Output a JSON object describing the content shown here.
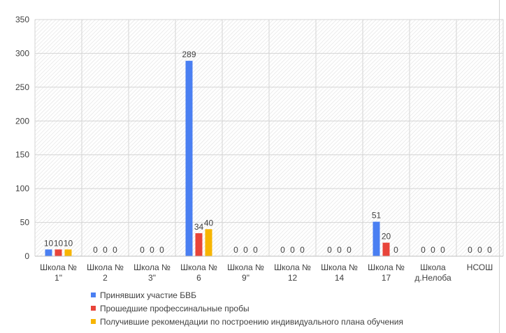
{
  "chart_data": {
    "type": "bar",
    "categories": [
      [
        "Школа №",
        "1\""
      ],
      [
        "Школа №",
        "2"
      ],
      [
        "Школа №",
        "3\""
      ],
      [
        "Школа",
        "6"
      ],
      [
        "Школа №",
        "9\""
      ],
      [
        "Школа",
        "12"
      ],
      [
        "Школа №",
        "14"
      ],
      [
        "Школа №",
        "17"
      ],
      [
        "Школа",
        "д.Нелоба"
      ],
      [
        "НСОШ",
        ""
      ]
    ],
    "category_suffix": [
      "",
      "",
      "",
      "№",
      "",
      "№",
      "",
      "",
      "",
      ""
    ],
    "series": [
      {
        "name": "Принявших  участие БВБ",
        "color": "#4a7ff2",
        "values": [
          10,
          0,
          0,
          289,
          0,
          0,
          0,
          51,
          0,
          0
        ],
        "labels": [
          "10",
          "0",
          "0",
          "289",
          "0",
          "0",
          "0",
          "51",
          "0",
          "0"
        ]
      },
      {
        "name": "Прошедшие профессинальные пробы",
        "color": "#e8443a",
        "values": [
          10,
          0,
          0,
          34,
          0,
          0,
          0,
          20,
          0,
          0
        ],
        "labels": [
          "10",
          "0",
          "0",
          "34",
          "0",
          "0",
          "0",
          "20",
          "0",
          "0"
        ]
      },
      {
        "name": "Получившие  рекомендации по построению индивидуального плана  обучения",
        "color": "#f7b500",
        "values": [
          10,
          0,
          0,
          40,
          0,
          0,
          0,
          0,
          0,
          0
        ],
        "labels": [
          "10",
          "0",
          "0",
          "40",
          "0",
          "0",
          "0",
          "0",
          "0",
          "0"
        ]
      }
    ],
    "yticks": [
      0,
      50,
      100,
      150,
      200,
      250,
      300,
      350
    ],
    "ylim": [
      0,
      350
    ],
    "grid": true,
    "legend_position": "bottom"
  }
}
